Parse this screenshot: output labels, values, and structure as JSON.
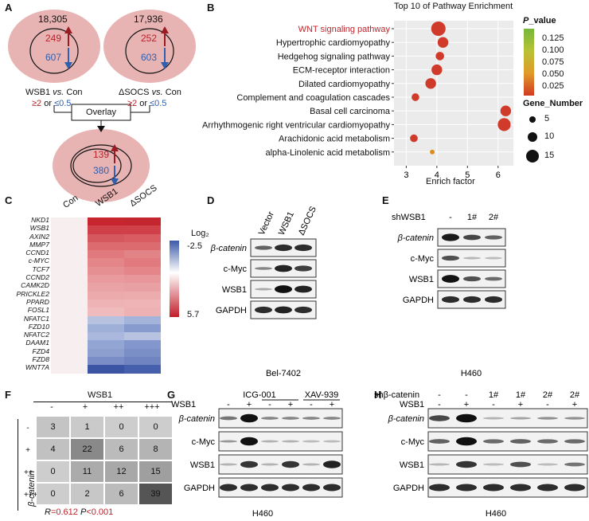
{
  "panelA": {
    "label": "A",
    "venn1": {
      "total": "18,305",
      "up": "249",
      "down": "607",
      "title_pre": "WSB1",
      "title_vs": "vs.",
      "title_post": "Con"
    },
    "venn2": {
      "total": "17,936",
      "up": "252",
      "down": "603",
      "title_pre": "ΔSOCS",
      "title_vs": "vs.",
      "title_post": "Con"
    },
    "threshold1": {
      "a": "≥2",
      "or": "or",
      "b": "≤0.5"
    },
    "threshold2": {
      "a": "≥2",
      "or": "or",
      "b": "≤0.5"
    },
    "overlay": "Overlay",
    "venn3": {
      "up": "139",
      "down": "380"
    }
  },
  "panelB": {
    "label": "B",
    "title": "Top 10 of Pathway Enrichment",
    "xlabel": "Enrich factor",
    "legend_p_title_italic": "P",
    "legend_p_title_rest": "_value",
    "legend_p_ticks": [
      "0.125",
      "0.100",
      "0.075",
      "0.050",
      "0.025"
    ],
    "legend_gene_title": "Gene_Number",
    "legend_gene_ticks": [
      "5",
      "10",
      "15"
    ]
  },
  "chart_data": {
    "type": "scatter",
    "title": "Top 10 of Pathway Enrichment",
    "xlabel": "Enrich factor",
    "ylabel": "",
    "xlim": [
      2.6,
      6.5
    ],
    "xticks": [
      3,
      4,
      5,
      6
    ],
    "pathways": [
      {
        "name": "WNT signaling pathway",
        "x": 4.05,
        "size": 15,
        "highlight": true
      },
      {
        "name": "Hypertrophic cardiomyopathy",
        "x": 4.2,
        "size": 10
      },
      {
        "name": "Hedgehog signaling pathway",
        "x": 4.1,
        "size": 7
      },
      {
        "name": "ECM-receptor interaction",
        "x": 4.0,
        "size": 10
      },
      {
        "name": "Dilated cardiomyopathy",
        "x": 3.8,
        "size": 10
      },
      {
        "name": "Complement and coagulation cascades",
        "x": 3.3,
        "size": 6
      },
      {
        "name": "Basal cell carcinoma",
        "x": 6.25,
        "size": 10
      },
      {
        "name": "Arrhythmogenic right ventricular cardiomyopathy",
        "x": 6.2,
        "size": 13
      },
      {
        "name": "Arachidonic acid metabolism",
        "x": 3.25,
        "size": 6
      },
      {
        "name": "alpha-Linolenic acid metabolism",
        "x": 3.85,
        "size": 2,
        "color": "#e08a1a"
      }
    ]
  },
  "panelC": {
    "label": "C",
    "columns": [
      "Con",
      "WSB1",
      "ΔSOCS"
    ],
    "genes": [
      "NKD1",
      "WSB1",
      "AXIN2",
      "MMP7",
      "CCND1",
      "c-MYC",
      "TCF7",
      "CCND2",
      "CAMK2D",
      "PRICKLE2",
      "PPARD",
      "FOSL1",
      "NFATC1",
      "FZD10",
      "NFATC2",
      "DAAM1",
      "FZD4",
      "FZD8",
      "WNT7A"
    ],
    "legend_title": "Log₂",
    "legend_min": "-2.5",
    "legend_max": "5.7"
  },
  "panelD": {
    "label": "D",
    "lanes": [
      "Vector",
      "WSB1",
      "ΔSOCS"
    ],
    "rows": [
      "β-catenin",
      "c-Myc",
      "WSB1",
      "GAPDH"
    ],
    "cell": "Bel-7402"
  },
  "panelE": {
    "label": "E",
    "header": "shWSB1",
    "lanes": [
      "-",
      "1#",
      "2#"
    ],
    "rows": [
      "β-catenin",
      "c-Myc",
      "WSB1",
      "GAPDH"
    ],
    "cell": "H460"
  },
  "panelF": {
    "label": "F",
    "header": "WSB1",
    "col_labels": [
      "-",
      "+",
      "++",
      "+++"
    ],
    "row_header": "β-catenin",
    "row_labels": [
      "-",
      "+",
      "++",
      "+++"
    ],
    "values": [
      [
        3,
        1,
        0,
        0
      ],
      [
        4,
        22,
        6,
        8
      ],
      [
        0,
        11,
        12,
        15
      ],
      [
        0,
        2,
        6,
        39
      ]
    ],
    "stat_r_label": "R",
    "stat_r_value": "=0.612",
    "stat_p_label": "P",
    "stat_p_value": "<0.001"
  },
  "panelG": {
    "label": "G",
    "group1": "ICG-001",
    "group2": "XAV-939",
    "wsb1_label": "WSB1",
    "lanes": [
      "-",
      "+",
      "-",
      "+",
      "-",
      "+"
    ],
    "rows": [
      "β-catenin",
      "c-Myc",
      "WSB1",
      "GAPDH"
    ],
    "cell": "H460"
  },
  "panelH": {
    "label": "H",
    "sh_label": "shβ-catenin",
    "sh_lanes": [
      "-",
      "-",
      "1#",
      "1#",
      "2#",
      "2#"
    ],
    "wsb1_label": "WSB1",
    "lanes": [
      "-",
      "+",
      "-",
      "+",
      "-",
      "+"
    ],
    "rows": [
      "β-catenin",
      "c-Myc",
      "WSB1",
      "GAPDH"
    ],
    "cell": "H460"
  }
}
